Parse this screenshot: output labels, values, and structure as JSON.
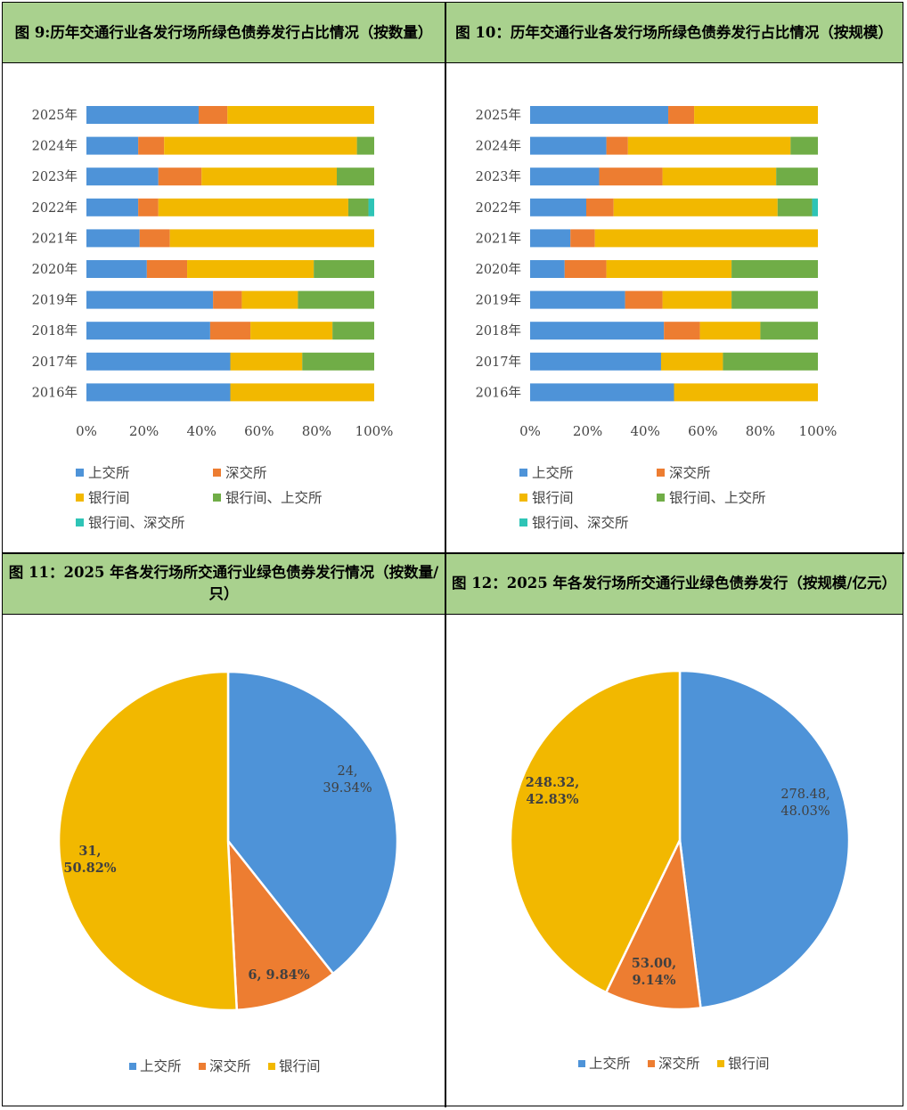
{
  "fig9": {
    "caption": "图 9:历年交通行业各发行场所绿色债券发行占比情况（按数量）"
  },
  "fig10": {
    "caption": "图 10：历年交通行业各发行场所绿色债券发行占比情况（按规模）"
  },
  "fig11": {
    "caption": "图 11：2025 年各发行场所交通行业绿色债券发行情况（按数量/只）"
  },
  "fig12": {
    "caption": "图 12：2025 年各发行场所交通行业绿色债券发行（按规模/亿元）"
  },
  "colors": {
    "sse": "#4e93d8",
    "szse": "#ed7d31",
    "ib": "#f2b800",
    "ib_sse": "#70ad47",
    "ib_szse": "#2ec4b6"
  },
  "chart_data": [
    {
      "id": "fig9",
      "type": "bar",
      "orientation": "horizontal",
      "stacked": "percent",
      "categories": [
        "2025年",
        "2024年",
        "2023年",
        "2022年",
        "2021年",
        "2020年",
        "2019年",
        "2018年",
        "2017年",
        "2016年"
      ],
      "series": [
        {
          "name": "上交所",
          "color_key": "sse",
          "values": [
            39,
            18,
            25,
            18,
            18.5,
            21,
            44,
            43,
            50,
            50
          ]
        },
        {
          "name": "深交所",
          "color_key": "szse",
          "values": [
            10,
            9,
            15,
            7,
            10.5,
            14,
            10,
            14,
            0,
            0
          ]
        },
        {
          "name": "银行间",
          "color_key": "ib",
          "values": [
            51,
            67,
            47,
            66,
            71,
            44,
            19.5,
            28.5,
            25,
            50
          ]
        },
        {
          "name": "银行间、上交所",
          "color_key": "ib_sse",
          "values": [
            0,
            6,
            13,
            7,
            0,
            21,
            26.5,
            14.5,
            25,
            0
          ]
        },
        {
          "name": "银行间、深交所",
          "color_key": "ib_szse",
          "values": [
            0,
            0,
            0,
            2,
            0,
            0,
            0,
            0,
            0,
            0
          ]
        }
      ],
      "xticks": [
        "0%",
        "20%",
        "40%",
        "60%",
        "80%",
        "100%"
      ],
      "xlim": [
        0,
        100
      ],
      "legend": "bottom"
    },
    {
      "id": "fig10",
      "type": "bar",
      "orientation": "horizontal",
      "stacked": "percent",
      "categories": [
        "2025年",
        "2024年",
        "2023年",
        "2022年",
        "2021年",
        "2020年",
        "2019年",
        "2018年",
        "2017年",
        "2016年"
      ],
      "series": [
        {
          "name": "上交所",
          "color_key": "sse",
          "values": [
            48,
            26.5,
            24,
            19.5,
            14,
            12,
            33,
            46.5,
            45.5,
            50
          ]
        },
        {
          "name": "深交所",
          "color_key": "szse",
          "values": [
            9,
            7.5,
            22,
            9.5,
            8.5,
            14.5,
            13,
            12.5,
            0,
            0
          ]
        },
        {
          "name": "银行间",
          "color_key": "ib",
          "values": [
            43,
            56.5,
            39.5,
            57,
            77.5,
            43.5,
            24,
            21,
            21.5,
            50
          ]
        },
        {
          "name": "银行间、上交所",
          "color_key": "ib_sse",
          "values": [
            0,
            9.5,
            14.5,
            12,
            0,
            30,
            30,
            20,
            33,
            0
          ]
        },
        {
          "name": "银行间、深交所",
          "color_key": "ib_szse",
          "values": [
            0,
            0,
            0,
            2,
            0,
            0,
            0,
            0,
            0,
            0
          ]
        }
      ],
      "xticks": [
        "0%",
        "20%",
        "40%",
        "60%",
        "80%",
        "100%"
      ],
      "xlim": [
        0,
        100
      ],
      "legend": "bottom"
    },
    {
      "id": "fig11",
      "type": "pie",
      "slices": [
        {
          "name": "上交所",
          "value": 24,
          "label": [
            "24,",
            "39.34%"
          ],
          "color_key": "sse"
        },
        {
          "name": "深交所",
          "value": 6,
          "label": [
            "6, 9.84%"
          ],
          "color_key": "szse"
        },
        {
          "name": "银行间",
          "value": 31,
          "label": [
            "31,",
            "50.82%"
          ],
          "color_key": "ib"
        }
      ],
      "legend": "bottom"
    },
    {
      "id": "fig12",
      "type": "pie",
      "slices": [
        {
          "name": "上交所",
          "value": 278.48,
          "label": [
            "278.48,",
            "48.03%"
          ],
          "color_key": "sse"
        },
        {
          "name": "深交所",
          "value": 53.0,
          "label": [
            "53.00,",
            "9.14%"
          ],
          "color_key": "szse"
        },
        {
          "name": "银行间",
          "value": 248.32,
          "label": [
            "248.32,",
            "42.83%"
          ],
          "color_key": "ib"
        }
      ],
      "legend": "bottom"
    }
  ]
}
